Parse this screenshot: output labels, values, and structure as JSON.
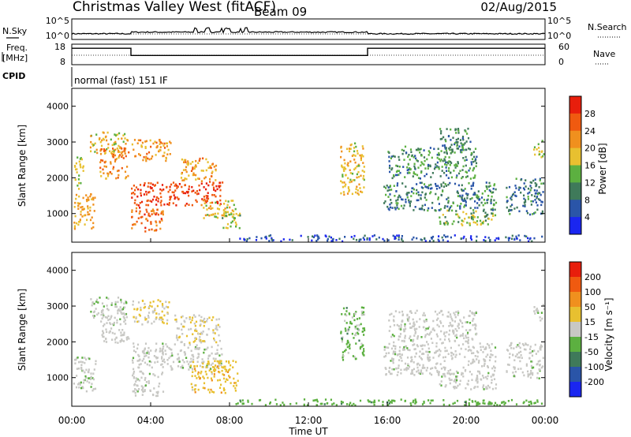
{
  "header": {
    "station": "Christmas Valley West (fitACF)",
    "beam": "Beam 09",
    "date": "02/Aug/2015"
  },
  "chart_data": [
    {
      "type": "line",
      "panel": "noise",
      "left_label": "N.Sky",
      "left_ticks": [
        "10^5",
        "10^0"
      ],
      "right_label": "N.Search",
      "right_ticks": [
        "10^5",
        "10^0"
      ],
      "series": [
        {
          "name": "N.Sky",
          "style": "solid"
        },
        {
          "name": "N.Search",
          "style": "dotted"
        }
      ]
    },
    {
      "type": "line",
      "panel": "frequency",
      "left_label_top": "Freq.",
      "left_label_bottom": "[MHz]",
      "left_ticks": [
        "18",
        "8"
      ],
      "right_label": "Nave",
      "right_ticks": [
        "60",
        "0"
      ],
      "freq_steps": [
        {
          "x": 0,
          "y": 16
        },
        {
          "x": 3.0,
          "y": 16
        },
        {
          "x": 3.0,
          "y": 12.5
        },
        {
          "x": 15.0,
          "y": 12.5
        },
        {
          "x": 15.0,
          "y": 16
        },
        {
          "x": 24,
          "y": 16
        }
      ]
    },
    {
      "type": "table",
      "panel": "cpid",
      "label": "CPID",
      "text": "normal (fast) 151 IF"
    },
    {
      "type": "heatmap",
      "panel": "power",
      "ylabel": "Slant Range [km]",
      "yticks": [
        "1000",
        "2000",
        "3000",
        "4000"
      ],
      "ylim": [
        200,
        4500
      ],
      "xlim": [
        0,
        24
      ],
      "colorbar_label": "Power [dB]",
      "colorbar_ticks": [
        "4",
        "8",
        "12",
        "16",
        "20",
        "24",
        "28"
      ],
      "colorbar_colors": [
        "#1a26f0",
        "#2a55a8",
        "#3f7a5a",
        "#5cb040",
        "#e8c030",
        "#f0901e",
        "#f05a10",
        "#e81e0c"
      ]
    },
    {
      "type": "heatmap",
      "panel": "velocity",
      "ylabel": "Slant Range [km]",
      "yticks": [
        "1000",
        "2000",
        "3000",
        "4000"
      ],
      "ylim": [
        200,
        4500
      ],
      "xlim": [
        0,
        24
      ],
      "colorbar_label": "Velocity [m s⁻¹]",
      "colorbar_ticks": [
        "200",
        "100",
        "50",
        "15",
        "-15",
        "-50",
        "-100",
        "-200"
      ],
      "colorbar_colors": [
        "#1a26f0",
        "#2a55a8",
        "#3f7a5a",
        "#5cb040",
        "#c8c8c4",
        "#e8c030",
        "#f0901e",
        "#f05a10",
        "#e81e0c"
      ]
    }
  ],
  "x_axis": {
    "ticks": [
      "00:00",
      "04:00",
      "08:00",
      "12:00",
      "16:00",
      "20:00",
      "00:00"
    ],
    "label": "Time UT"
  },
  "power_blobs": [
    {
      "t0": 0.05,
      "t1": 1.2,
      "r0": 600,
      "r1": 1600,
      "c": [
        0.55,
        0.75
      ]
    },
    {
      "t0": 0.1,
      "t1": 0.6,
      "r0": 1700,
      "r1": 2600,
      "c": [
        0.4,
        0.6
      ]
    },
    {
      "t0": 0.9,
      "t1": 2.8,
      "r0": 2700,
      "r1": 3300,
      "c": [
        0.45,
        0.7
      ]
    },
    {
      "t0": 1.4,
      "t1": 2.9,
      "r0": 2000,
      "r1": 2900,
      "c": [
        0.6,
        0.85
      ]
    },
    {
      "t0": 3.0,
      "t1": 7.6,
      "r0": 1250,
      "r1": 1900,
      "c": [
        0.75,
        0.95
      ]
    },
    {
      "t0": 3.0,
      "t1": 5.0,
      "r0": 2500,
      "r1": 3100,
      "c": [
        0.55,
        0.8
      ]
    },
    {
      "t0": 3.0,
      "t1": 4.6,
      "r0": 500,
      "r1": 1200,
      "c": [
        0.65,
        0.9
      ]
    },
    {
      "t0": 5.5,
      "t1": 7.3,
      "r0": 1900,
      "r1": 2600,
      "c": [
        0.5,
        0.8
      ]
    },
    {
      "t0": 6.5,
      "t1": 8.2,
      "r0": 900,
      "r1": 1400,
      "c": [
        0.45,
        0.75
      ]
    },
    {
      "t0": 7.5,
      "t1": 8.5,
      "r0": 600,
      "r1": 1200,
      "c": [
        0.35,
        0.6
      ]
    },
    {
      "t0": 13.6,
      "t1": 14.8,
      "r0": 1500,
      "r1": 3000,
      "c": [
        0.45,
        0.7
      ]
    },
    {
      "t0": 15.8,
      "t1": 21.5,
      "r0": 1100,
      "r1": 1900,
      "c": [
        0.15,
        0.45
      ]
    },
    {
      "t0": 16.0,
      "t1": 20.5,
      "r0": 2000,
      "r1": 2900,
      "c": [
        0.2,
        0.5
      ]
    },
    {
      "t0": 18.5,
      "t1": 21.5,
      "r0": 700,
      "r1": 1150,
      "c": [
        0.3,
        0.6
      ]
    },
    {
      "t0": 18.6,
      "t1": 20.2,
      "r0": 2700,
      "r1": 3400,
      "c": [
        0.2,
        0.45
      ]
    },
    {
      "t0": 22.0,
      "t1": 23.9,
      "r0": 1000,
      "r1": 2000,
      "c": [
        0.15,
        0.4
      ]
    },
    {
      "t0": 23.4,
      "t1": 23.95,
      "r0": 2600,
      "r1": 3100,
      "c": [
        0.45,
        0.65
      ]
    },
    {
      "t0": 8.0,
      "t1": 24.0,
      "r0": 250,
      "r1": 420,
      "c": [
        0.0,
        0.3
      ]
    }
  ],
  "velocity_blobs": [
    {
      "t0": 0.05,
      "t1": 1.2,
      "r0": 600,
      "r1": 1600,
      "c": [
        0.42,
        0.52
      ]
    },
    {
      "t0": 0.9,
      "t1": 2.8,
      "r0": 2700,
      "r1": 3300,
      "c": [
        0.42,
        0.52
      ]
    },
    {
      "t0": 1.4,
      "t1": 2.9,
      "r0": 2000,
      "r1": 2900,
      "c": [
        0.44,
        0.5
      ]
    },
    {
      "t0": 3.0,
      "t1": 7.6,
      "r0": 1250,
      "r1": 2000,
      "c": [
        0.44,
        0.5
      ]
    },
    {
      "t0": 3.0,
      "t1": 5.0,
      "r0": 2500,
      "r1": 3200,
      "c": [
        0.5,
        0.62
      ]
    },
    {
      "t0": 3.0,
      "t1": 4.6,
      "r0": 500,
      "r1": 1200,
      "c": [
        0.44,
        0.5
      ]
    },
    {
      "t0": 5.2,
      "t1": 7.5,
      "r0": 2000,
      "r1": 2800,
      "c": [
        0.5,
        0.6
      ]
    },
    {
      "t0": 6.0,
      "t1": 8.4,
      "r0": 600,
      "r1": 1500,
      "c": [
        0.55,
        0.68
      ]
    },
    {
      "t0": 13.6,
      "t1": 14.8,
      "r0": 1500,
      "r1": 3000,
      "c": [
        0.33,
        0.48
      ]
    },
    {
      "t0": 15.8,
      "t1": 21.5,
      "r0": 1100,
      "r1": 2000,
      "c": [
        0.44,
        0.5
      ]
    },
    {
      "t0": 16.0,
      "t1": 20.5,
      "r0": 2000,
      "r1": 2900,
      "c": [
        0.44,
        0.5
      ]
    },
    {
      "t0": 18.5,
      "t1": 21.5,
      "r0": 700,
      "r1": 1150,
      "c": [
        0.44,
        0.5
      ]
    },
    {
      "t0": 22.0,
      "t1": 23.9,
      "r0": 1000,
      "r1": 2000,
      "c": [
        0.44,
        0.5
      ]
    },
    {
      "t0": 23.4,
      "t1": 23.95,
      "r0": 2600,
      "r1": 3100,
      "c": [
        0.44,
        0.5
      ]
    },
    {
      "t0": 8.0,
      "t1": 24.0,
      "r0": 250,
      "r1": 420,
      "c": [
        0.33,
        0.42
      ]
    }
  ]
}
